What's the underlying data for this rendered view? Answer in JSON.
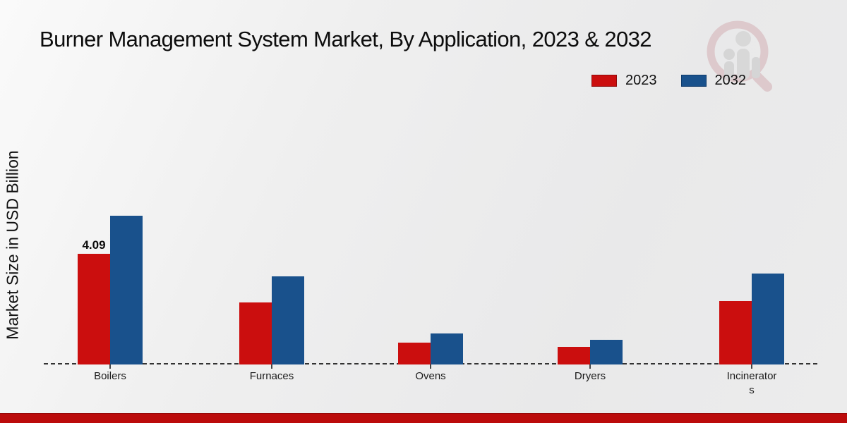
{
  "title": "Burner Management System Market, By Application, 2023 & 2032",
  "y_axis_label": "Market Size in USD Billion",
  "legend": {
    "items": [
      {
        "label": "2023",
        "color": "#cb0e0e"
      },
      {
        "label": "2032",
        "color": "#19518c"
      }
    ]
  },
  "watermark": {
    "name": "market-research-future-logo"
  },
  "footer": {
    "accent_color": "#bb0b0b"
  },
  "chart_data": {
    "type": "bar",
    "title": "Burner Management System Market, By Application, 2023 & 2032",
    "ylabel": "Market Size in USD Billion",
    "xlabel": "",
    "categories": [
      "Boilers",
      "Furnaces",
      "Ovens",
      "Dryers",
      "Incinerators"
    ],
    "categories_display_lines": [
      [
        "Boilers"
      ],
      [
        "Furnaces"
      ],
      [
        "Ovens"
      ],
      [
        "Dryers"
      ],
      [
        "Incinerator",
        "s"
      ]
    ],
    "series": [
      {
        "name": "2023",
        "color": "#cb0e0e",
        "values": [
          4.09,
          2.3,
          0.82,
          0.66,
          2.35
        ]
      },
      {
        "name": "2032",
        "color": "#19518c",
        "values": [
          5.5,
          3.25,
          1.15,
          0.9,
          3.35
        ]
      }
    ],
    "bar_labels": [
      {
        "series": "2023",
        "category": "Boilers",
        "text": "4.09"
      }
    ],
    "ylim": [
      0,
      6
    ],
    "grid": false,
    "axis_ticks_visible": false,
    "baseline_style": "dashed",
    "legend_position": "top-right"
  }
}
